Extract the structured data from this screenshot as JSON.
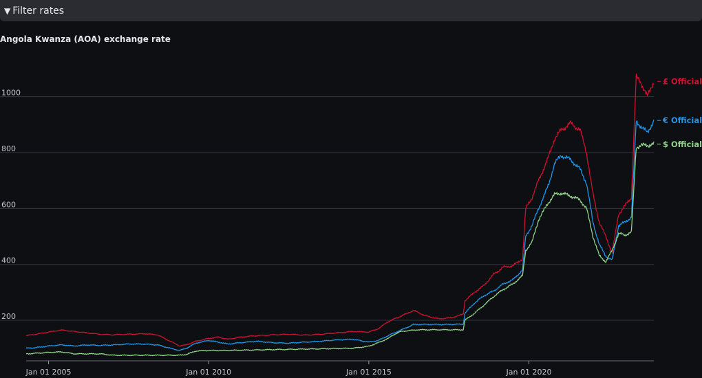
{
  "filter": {
    "label": "Filter rates",
    "caret": "▼"
  },
  "chart_data": {
    "type": "line",
    "title": "Angola Kwanza (AOA) exchange rate",
    "xlabel": "",
    "ylabel": "",
    "ylim": [
      55,
      1100
    ],
    "xlim": [
      2004.3,
      2023.9
    ],
    "x_ticks": [
      {
        "x": 2005,
        "label": "Jan 01 2005"
      },
      {
        "x": 2010,
        "label": "Jan 01 2010"
      },
      {
        "x": 2015,
        "label": "Jan 01 2015"
      },
      {
        "x": 2020,
        "label": "Jan 01 2020"
      }
    ],
    "y_ticks": [
      200,
      400,
      600,
      800,
      1000
    ],
    "grid": true,
    "series": [
      {
        "name": "£ Official",
        "color": "#d0102f",
        "points": [
          [
            2004.3,
            145
          ],
          [
            2004.6,
            150
          ],
          [
            2005.0,
            158
          ],
          [
            2005.4,
            165
          ],
          [
            2005.8,
            160
          ],
          [
            2006.2,
            155
          ],
          [
            2006.6,
            150
          ],
          [
            2007.0,
            148
          ],
          [
            2007.5,
            150
          ],
          [
            2008.0,
            152
          ],
          [
            2008.4,
            148
          ],
          [
            2008.8,
            125
          ],
          [
            2009.1,
            108
          ],
          [
            2009.3,
            112
          ],
          [
            2009.6,
            125
          ],
          [
            2010.0,
            135
          ],
          [
            2010.3,
            140
          ],
          [
            2010.6,
            132
          ],
          [
            2011.0,
            140
          ],
          [
            2011.5,
            145
          ],
          [
            2012.0,
            148
          ],
          [
            2012.5,
            150
          ],
          [
            2013.0,
            147
          ],
          [
            2013.5,
            150
          ],
          [
            2014.0,
            155
          ],
          [
            2014.5,
            160
          ],
          [
            2015.0,
            158
          ],
          [
            2015.3,
            170
          ],
          [
            2015.6,
            195
          ],
          [
            2016.0,
            215
          ],
          [
            2016.4,
            235
          ],
          [
            2016.8,
            215
          ],
          [
            2017.2,
            205
          ],
          [
            2017.6,
            210
          ],
          [
            2017.95,
            222
          ],
          [
            2018.0,
            270
          ],
          [
            2018.3,
            300
          ],
          [
            2018.6,
            325
          ],
          [
            2018.9,
            365
          ],
          [
            2019.2,
            390
          ],
          [
            2019.5,
            395
          ],
          [
            2019.8,
            420
          ],
          [
            2019.9,
            600
          ],
          [
            2020.1,
            640
          ],
          [
            2020.3,
            700
          ],
          [
            2020.6,
            780
          ],
          [
            2020.8,
            850
          ],
          [
            2021.0,
            880
          ],
          [
            2021.3,
            905
          ],
          [
            2021.6,
            880
          ],
          [
            2021.8,
            800
          ],
          [
            2022.0,
            650
          ],
          [
            2022.2,
            550
          ],
          [
            2022.4,
            500
          ],
          [
            2022.6,
            440
          ],
          [
            2022.8,
            580
          ],
          [
            2023.0,
            610
          ],
          [
            2023.2,
            640
          ],
          [
            2023.35,
            1070
          ],
          [
            2023.5,
            1050
          ],
          [
            2023.7,
            1000
          ],
          [
            2023.9,
            1055
          ]
        ]
      },
      {
        "name": "€ Official",
        "color": "#1f95e8",
        "points": [
          [
            2004.3,
            100
          ],
          [
            2004.6,
            102
          ],
          [
            2005.0,
            108
          ],
          [
            2005.4,
            112
          ],
          [
            2005.8,
            108
          ],
          [
            2006.2,
            112
          ],
          [
            2006.6,
            110
          ],
          [
            2007.0,
            112
          ],
          [
            2007.5,
            115
          ],
          [
            2008.0,
            115
          ],
          [
            2008.4,
            112
          ],
          [
            2008.8,
            100
          ],
          [
            2009.1,
            92
          ],
          [
            2009.3,
            100
          ],
          [
            2009.6,
            118
          ],
          [
            2010.0,
            128
          ],
          [
            2010.3,
            122
          ],
          [
            2010.6,
            115
          ],
          [
            2011.0,
            120
          ],
          [
            2011.5,
            125
          ],
          [
            2012.0,
            120
          ],
          [
            2012.5,
            118
          ],
          [
            2013.0,
            122
          ],
          [
            2013.5,
            125
          ],
          [
            2014.0,
            130
          ],
          [
            2014.5,
            132
          ],
          [
            2015.0,
            122
          ],
          [
            2015.3,
            128
          ],
          [
            2015.6,
            145
          ],
          [
            2016.0,
            165
          ],
          [
            2016.4,
            185
          ],
          [
            2017.0,
            185
          ],
          [
            2017.5,
            185
          ],
          [
            2017.95,
            186
          ],
          [
            2018.0,
            225
          ],
          [
            2018.3,
            262
          ],
          [
            2018.6,
            288
          ],
          [
            2018.9,
            305
          ],
          [
            2019.2,
            330
          ],
          [
            2019.5,
            345
          ],
          [
            2019.8,
            380
          ],
          [
            2019.9,
            500
          ],
          [
            2020.1,
            540
          ],
          [
            2020.3,
            600
          ],
          [
            2020.6,
            680
          ],
          [
            2020.8,
            760
          ],
          [
            2021.0,
            790
          ],
          [
            2021.3,
            775
          ],
          [
            2021.6,
            740
          ],
          [
            2021.8,
            690
          ],
          [
            2022.0,
            550
          ],
          [
            2022.2,
            470
          ],
          [
            2022.4,
            430
          ],
          [
            2022.6,
            415
          ],
          [
            2022.8,
            540
          ],
          [
            2023.0,
            550
          ],
          [
            2023.2,
            570
          ],
          [
            2023.35,
            910
          ],
          [
            2023.5,
            895
          ],
          [
            2023.7,
            870
          ],
          [
            2023.9,
            915
          ]
        ]
      },
      {
        "name": "$ Official",
        "color": "#8fd48a",
        "points": [
          [
            2004.3,
            80
          ],
          [
            2004.6,
            82
          ],
          [
            2005.0,
            85
          ],
          [
            2005.4,
            87
          ],
          [
            2005.8,
            80
          ],
          [
            2006.2,
            80
          ],
          [
            2006.6,
            80
          ],
          [
            2007.0,
            75
          ],
          [
            2007.5,
            75
          ],
          [
            2008.0,
            75
          ],
          [
            2008.4,
            75
          ],
          [
            2008.8,
            75
          ],
          [
            2009.1,
            75
          ],
          [
            2009.3,
            78
          ],
          [
            2009.6,
            90
          ],
          [
            2010.0,
            92
          ],
          [
            2010.5,
            92
          ],
          [
            2011.0,
            93
          ],
          [
            2011.5,
            94
          ],
          [
            2012.0,
            95
          ],
          [
            2012.5,
            96
          ],
          [
            2013.0,
            97
          ],
          [
            2013.5,
            98
          ],
          [
            2014.0,
            99
          ],
          [
            2014.5,
            100
          ],
          [
            2015.0,
            107
          ],
          [
            2015.3,
            120
          ],
          [
            2015.6,
            135
          ],
          [
            2015.8,
            150
          ],
          [
            2016.0,
            160
          ],
          [
            2016.5,
            166
          ],
          [
            2017.0,
            166
          ],
          [
            2017.5,
            166
          ],
          [
            2017.95,
            166
          ],
          [
            2018.0,
            200
          ],
          [
            2018.3,
            225
          ],
          [
            2018.6,
            255
          ],
          [
            2018.9,
            285
          ],
          [
            2019.2,
            310
          ],
          [
            2019.5,
            330
          ],
          [
            2019.8,
            360
          ],
          [
            2019.9,
            450
          ],
          [
            2020.1,
            480
          ],
          [
            2020.3,
            560
          ],
          [
            2020.6,
            620
          ],
          [
            2020.8,
            650
          ],
          [
            2021.0,
            655
          ],
          [
            2021.3,
            645
          ],
          [
            2021.6,
            630
          ],
          [
            2021.8,
            600
          ],
          [
            2022.0,
            500
          ],
          [
            2022.2,
            430
          ],
          [
            2022.4,
            410
          ],
          [
            2022.6,
            450
          ],
          [
            2022.8,
            510
          ],
          [
            2023.0,
            505
          ],
          [
            2023.2,
            515
          ],
          [
            2023.35,
            820
          ],
          [
            2023.5,
            825
          ],
          [
            2023.7,
            827
          ],
          [
            2023.9,
            830
          ]
        ]
      }
    ]
  }
}
